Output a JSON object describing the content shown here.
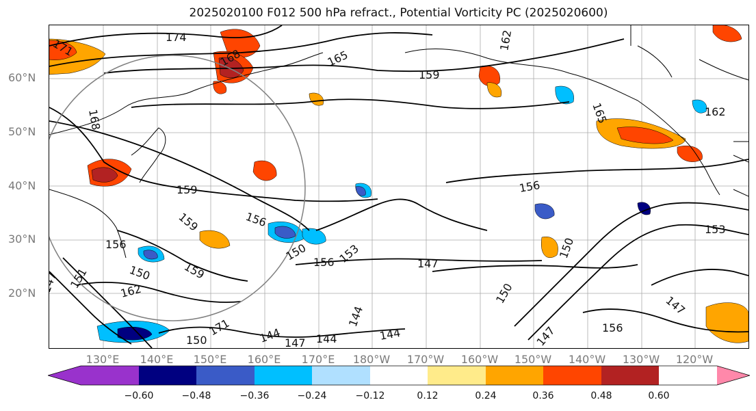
{
  "title": "2025020100 F012 500 hPa refract., Potential Vorticity PC (2025020600)",
  "lat_labels": [
    "60°N",
    "50°N",
    "40°N",
    "30°N",
    "20°N"
  ],
  "lon_labels": [
    "130°E",
    "140°E",
    "150°E",
    "160°E",
    "170°E",
    "180°W",
    "170°W",
    "160°W",
    "150°W",
    "140°W",
    "130°W",
    "120°W"
  ],
  "contour_labels": [
    "174",
    "171",
    "168",
    "165",
    "162",
    "159",
    "168",
    "165",
    "162",
    "159",
    "156",
    "159",
    "156",
    "159",
    "150",
    "156",
    "153",
    "162",
    "150",
    "147",
    "144",
    "147",
    "144",
    "144",
    "144",
    "147",
    "150",
    "156",
    "147",
    "153",
    "150",
    "156",
    "147",
    "151",
    "150",
    "171"
  ],
  "colorbar": {
    "tick_labels": [
      "−0.60",
      "−0.48",
      "−0.36",
      "−0.24",
      "−0.12",
      "0.12",
      "0.24",
      "0.36",
      "0.48",
      "0.60"
    ],
    "colors": [
      "#9932CC",
      "#000080",
      "#3A5BC7",
      "#00BFFF",
      "#B0E0FF",
      "#FFFFFF",
      "#FFEB8A",
      "#FFA500",
      "#FF4500",
      "#B22222",
      "#FF88AA"
    ]
  },
  "colors": {
    "positive_high": "#B22222",
    "positive_mid": "#FF4500",
    "positive_low": "#FFA500",
    "positive_min": "#FFEB8A",
    "negative_min": "#B0E0FF",
    "negative_low": "#00BFFF",
    "negative_mid": "#3A5BC7",
    "negative_high": "#000080"
  }
}
